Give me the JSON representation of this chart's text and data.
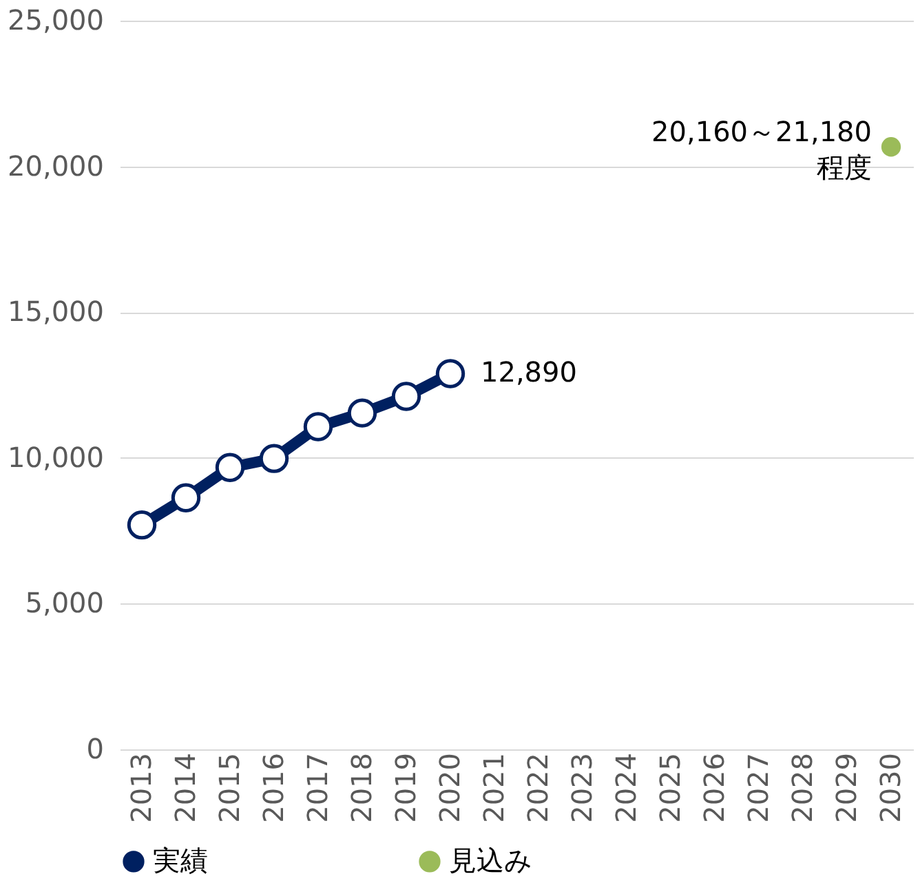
{
  "chart_data": {
    "type": "line",
    "categories": [
      "2013",
      "2014",
      "2015",
      "2016",
      "2017",
      "2018",
      "2019",
      "2020",
      "2021",
      "2022",
      "2023",
      "2024",
      "2025",
      "2026",
      "2027",
      "2028",
      "2029",
      "2030"
    ],
    "series": [
      {
        "name": "実績",
        "color": "#002060",
        "marker": "circle",
        "values": [
          7700,
          8630,
          9670,
          9980,
          11070,
          11540,
          12110,
          12890,
          null,
          null,
          null,
          null,
          null,
          null,
          null,
          null,
          null,
          null
        ],
        "value_labels": [
          null,
          null,
          null,
          null,
          null,
          null,
          null,
          "12,890",
          null,
          null,
          null,
          null,
          null,
          null,
          null,
          null,
          null,
          null
        ]
      },
      {
        "name": "見込み",
        "type": "scatter",
        "color": "#9bbb59",
        "marker": "circle",
        "values": [
          null,
          null,
          null,
          null,
          null,
          null,
          null,
          null,
          null,
          null,
          null,
          null,
          null,
          null,
          null,
          null,
          null,
          20670
        ]
      }
    ],
    "annotations": [
      {
        "text": "20,160～21,180 程度",
        "x": "2030",
        "y": 20670
      }
    ],
    "ylim": [
      0,
      25000
    ],
    "yticks": [
      0,
      {
        "value": 5000,
        "label": "5,000"
      },
      {
        "value": 10000,
        "label": "10,000"
      },
      {
        "value": 15000,
        "label": "15,000"
      },
      {
        "value": 20000,
        "label": "20,000"
      },
      {
        "value": 25000,
        "label": "25,000"
      }
    ],
    "grid": "y",
    "legend": "bottom"
  }
}
